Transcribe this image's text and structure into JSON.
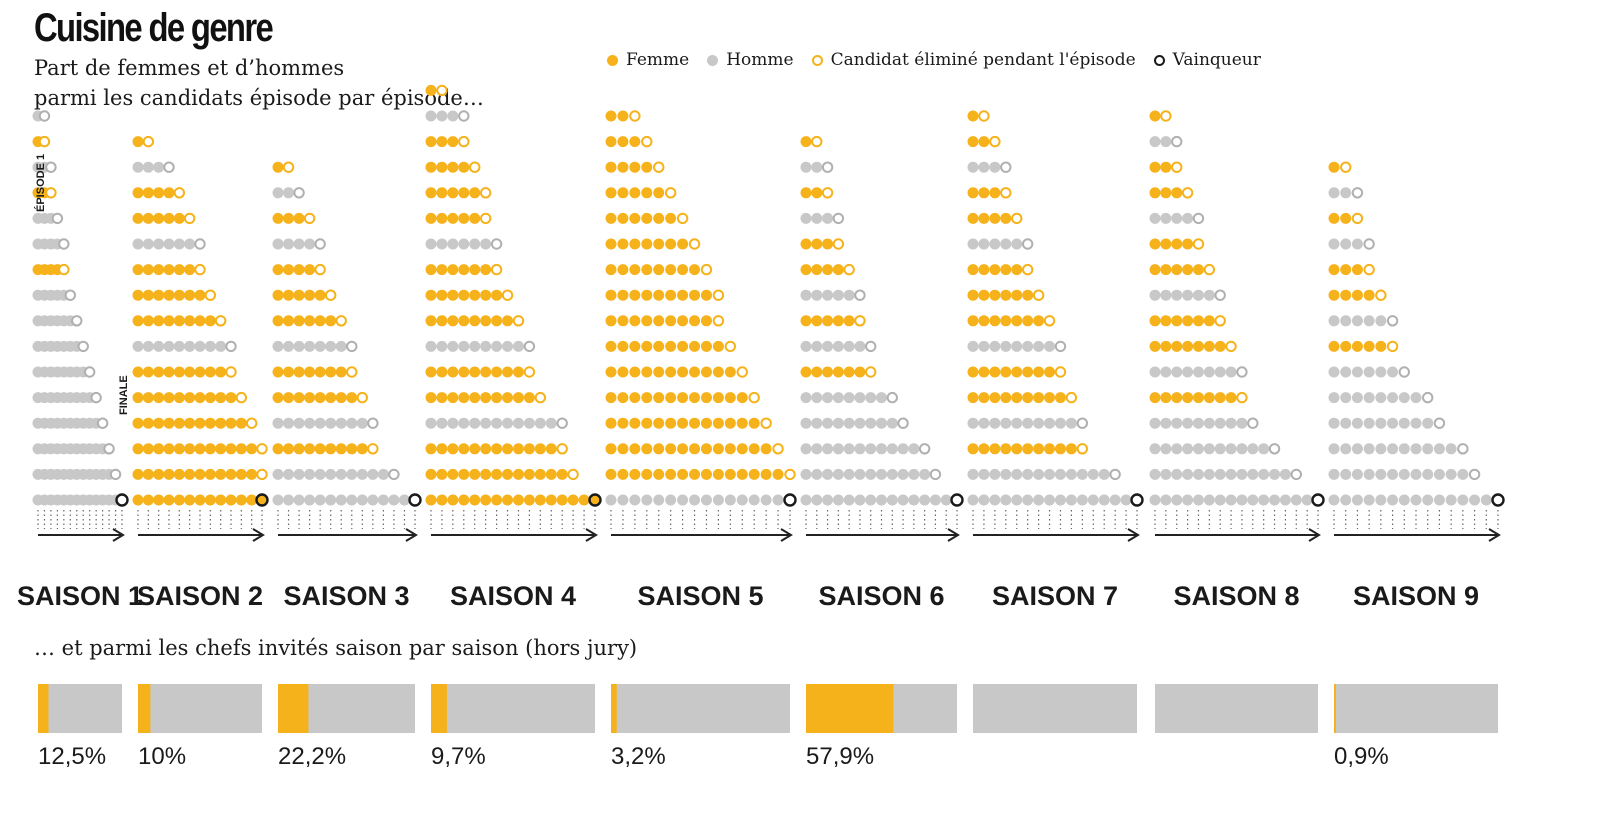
{
  "title": "Cuisine de genre",
  "subtitle_line1": "Part de femmes et d’hommes",
  "subtitle_line2": "parmi les candidats épisode par épisode…",
  "subtitle_bars": "… et parmi les chefs invités saison par saison (hors jury)",
  "legend": {
    "femme": "Femme",
    "homme": "Homme",
    "elimine": "Candidat éliminé pendant l'épisode",
    "vainqueur": "Vainqueur"
  },
  "annotations": {
    "episode1": "ÉPISODE 1",
    "finale": "FINALE"
  },
  "colors": {
    "femme": "#f5b21b",
    "homme": "#c8c8c8",
    "winner": "#1a1a1a",
    "line": "#555555"
  },
  "chart_data": {
    "type": "dot-matrix",
    "description": "Candidates per episode by gender; each column is an episode",
    "seasons": [
      {
        "label": "SAISON 1",
        "women": 3,
        "men": 13,
        "episodes": 13,
        "women_exit": [
          1,
          2,
          4
        ],
        "winner": "man",
        "guest_chefs_women_pct": 12.5,
        "guest_chefs_label": "12,5%"
      },
      {
        "label": "SAISON 2",
        "women": 11,
        "men": 3,
        "episodes": 12,
        "women_exit": [
          1,
          4,
          5,
          6,
          7,
          8,
          9,
          10,
          11,
          12,
          12
        ],
        "winner": "woman",
        "guest_chefs_women_pct": 10.0,
        "guest_chefs_label": "10%"
      },
      {
        "label": "SAISON 3",
        "women": 8,
        "men": 6,
        "episodes": 13,
        "women_exit": [
          1,
          3,
          4,
          5,
          6,
          7,
          8,
          9
        ],
        "winner": "man",
        "guest_chefs_women_pct": 22.2,
        "guest_chefs_label": "22,2%"
      },
      {
        "label": "SAISON 4",
        "women": 12,
        "men": 4,
        "episodes": 15,
        "women_exit": [
          1,
          3,
          4,
          5,
          5,
          6,
          7,
          8,
          9,
          10,
          12,
          13
        ],
        "winner": "woman",
        "guest_chefs_women_pct": 9.7,
        "guest_chefs_label": "9,7%"
      },
      {
        "label": "SAISON 5",
        "women": 15,
        "men": 1,
        "episodes": 15,
        "women_exit": [
          2,
          3,
          4,
          5,
          6,
          7,
          8,
          9,
          9,
          10,
          11,
          12,
          13,
          14,
          15
        ],
        "winner": "man",
        "guest_chefs_women_pct": 3.2,
        "guest_chefs_label": "3,2%"
      },
      {
        "label": "SAISON 6",
        "women": 6,
        "men": 9,
        "episodes": 14,
        "women_exit": [
          1,
          2,
          3,
          4,
          5,
          6
        ],
        "winner": "man",
        "guest_chefs_women_pct": 57.9,
        "guest_chefs_label": "57,9%"
      },
      {
        "label": "SAISON 7",
        "women": 10,
        "men": 6,
        "episodes": 15,
        "women_exit": [
          1,
          2,
          3,
          4,
          5,
          6,
          7,
          8,
          9,
          10
        ],
        "winner": "man",
        "guest_chefs_women_pct": 0,
        "guest_chefs_label": ""
      },
      {
        "label": "SAISON 8",
        "women": 8,
        "men": 8,
        "episodes": 15,
        "women_exit": [
          1,
          2,
          3,
          4,
          5,
          6,
          7,
          8
        ],
        "winner": "man",
        "guest_chefs_women_pct": 0,
        "guest_chefs_label": ""
      },
      {
        "label": "SAISON 9",
        "women": 5,
        "men": 9,
        "episodes": 14,
        "women_exit": [
          1,
          2,
          3,
          4,
          5
        ],
        "winner": "man",
        "guest_chefs_women_pct": 0.9,
        "guest_chefs_label": "0,9%"
      }
    ]
  }
}
